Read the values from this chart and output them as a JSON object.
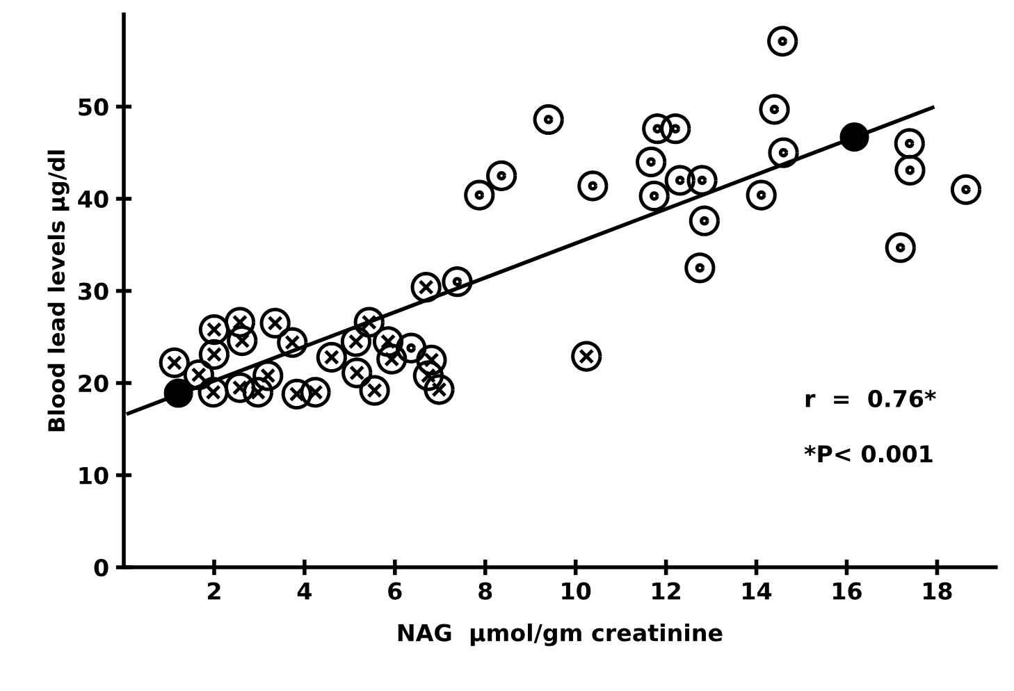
{
  "chart_data": {
    "type": "scatter",
    "xlabel": "NAG  μmol/gm creatinine",
    "ylabel": "Blood lead levels μg/dl",
    "xlim": [
      0,
      19.3
    ],
    "xticks": [
      2,
      4,
      6,
      8,
      10,
      12,
      14,
      16,
      18
    ],
    "ylim": [
      0,
      60
    ],
    "yticks": [
      0,
      10,
      20,
      30,
      40,
      50
    ],
    "grid": false,
    "legend": false,
    "annotations": [
      "r  =  0.76*",
      "*P< 0.001"
    ],
    "series": [
      {
        "marker": "cross",
        "color": "#000000",
        "x": [
          1.12,
          1.66,
          2.0,
          2.0,
          1.98,
          2.57,
          2.62,
          2.57,
          2.97,
          3.19,
          3.35,
          3.73,
          3.83,
          4.24,
          4.6,
          5.14,
          5.16,
          5.43,
          5.55,
          5.85,
          5.93,
          6.69,
          6.81,
          6.74,
          6.98,
          10.24
        ],
        "values": [
          22.2,
          20.9,
          25.8,
          23.1,
          19.0,
          26.6,
          24.6,
          19.5,
          19.0,
          20.8,
          26.5,
          24.4,
          18.8,
          19.0,
          22.8,
          24.5,
          21.1,
          26.6,
          19.2,
          24.5,
          22.6,
          30.4,
          22.5,
          20.8,
          19.3,
          22.9
        ]
      },
      {
        "marker": "circle",
        "color": "#000000",
        "x": [
          6.36,
          7.38,
          7.87,
          8.36,
          9.4,
          10.38,
          11.81,
          12.21,
          11.67,
          11.74,
          12.31,
          12.8,
          12.85,
          12.75,
          14.11,
          14.4,
          14.58,
          14.6,
          17.19,
          17.39,
          17.4,
          18.64
        ],
        "values": [
          23.8,
          31.0,
          40.4,
          42.5,
          48.6,
          41.4,
          47.6,
          47.6,
          44.0,
          40.3,
          42.0,
          42.0,
          37.6,
          32.5,
          40.4,
          49.7,
          57.1,
          45.0,
          34.7,
          46.0,
          43.1,
          41.0
        ]
      },
      {
        "marker": "circle",
        "color": "#000000",
        "x": [
          1.21,
          16.17
        ],
        "values": [
          18.9,
          46.7
        ]
      },
      {
        "type": "line",
        "marker": "none",
        "line_style": "solid",
        "color": "#000000",
        "x": [
          0.1,
          17.9
        ],
        "values": [
          16.7,
          49.9
        ]
      }
    ]
  }
}
